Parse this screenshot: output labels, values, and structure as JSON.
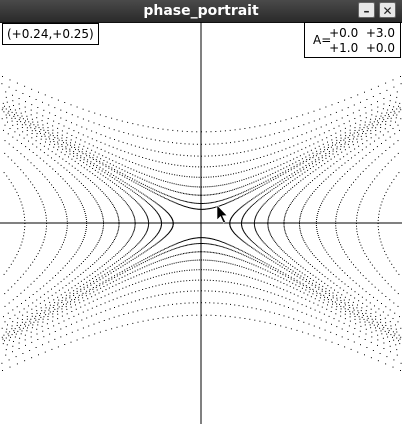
{
  "window": {
    "title": "phase_portrait",
    "minimize_glyph": "–",
    "close_glyph": "✕"
  },
  "readout": {
    "coordinates": "(+0.24,+0.25)"
  },
  "matrix": {
    "label": "A=",
    "row1": "+0.0  +3.0",
    "row2": "+1.0  +0.0",
    "values": [
      [
        0.0,
        3.0
      ],
      [
        1.0,
        0.0
      ]
    ]
  },
  "plot": {
    "axes_visible": true,
    "grid": false,
    "trajectory_style": "dotted",
    "colors": {
      "background": "#ffffff",
      "trajectories": "#000000",
      "axes": "#000000"
    }
  },
  "cursor": {
    "icon": "arrow-cursor-icon"
  }
}
